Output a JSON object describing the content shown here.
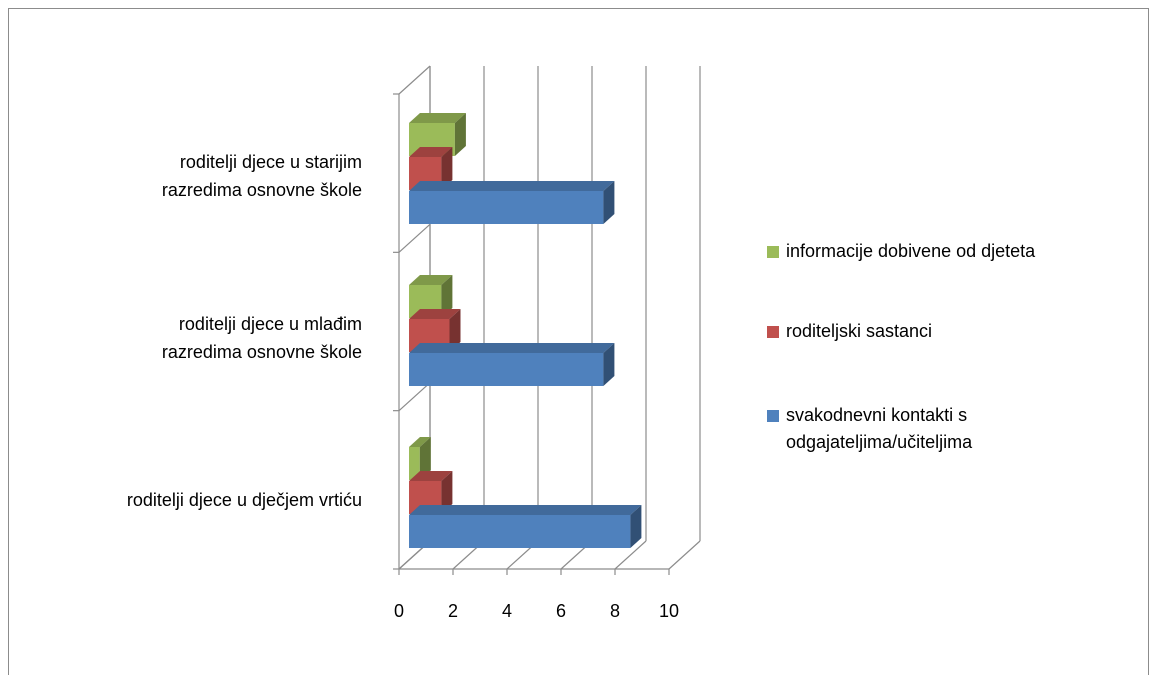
{
  "chart_data": {
    "type": "bar",
    "orientation": "horizontal",
    "three_d": true,
    "categories": [
      [
        "roditelji djece u starijim",
        "razredima osnovne škole"
      ],
      [
        "roditelji djece u mlađim",
        "razredima osnovne škole"
      ],
      [
        "roditelji djece u dječjem vrtiću"
      ]
    ],
    "series": [
      {
        "name": "svakodnevni kontakti s odgajateljima/učiteljima",
        "legend_lines": [
          "svakodnevni kontakti s",
          "odgajateljima/učiteljima"
        ],
        "color": "#4F81BD",
        "values": [
          7.2,
          7.2,
          8.2
        ]
      },
      {
        "name": "roditeljski sastanci",
        "legend_lines": [
          "roditeljski sastanci"
        ],
        "color": "#C0504D",
        "values": [
          1.2,
          1.5,
          1.2
        ]
      },
      {
        "name": "informacije dobivene od djeteta",
        "legend_lines": [
          "informacije dobivene od djeteta"
        ],
        "color": "#9BBB59",
        "values": [
          1.7,
          1.2,
          0.4
        ]
      }
    ],
    "xlim": [
      0,
      10
    ],
    "x_ticks": [
      "0",
      "2",
      "4",
      "6",
      "8",
      "10"
    ],
    "grid": true,
    "legend_position": "right",
    "title": "",
    "xlabel": "",
    "ylabel": ""
  }
}
